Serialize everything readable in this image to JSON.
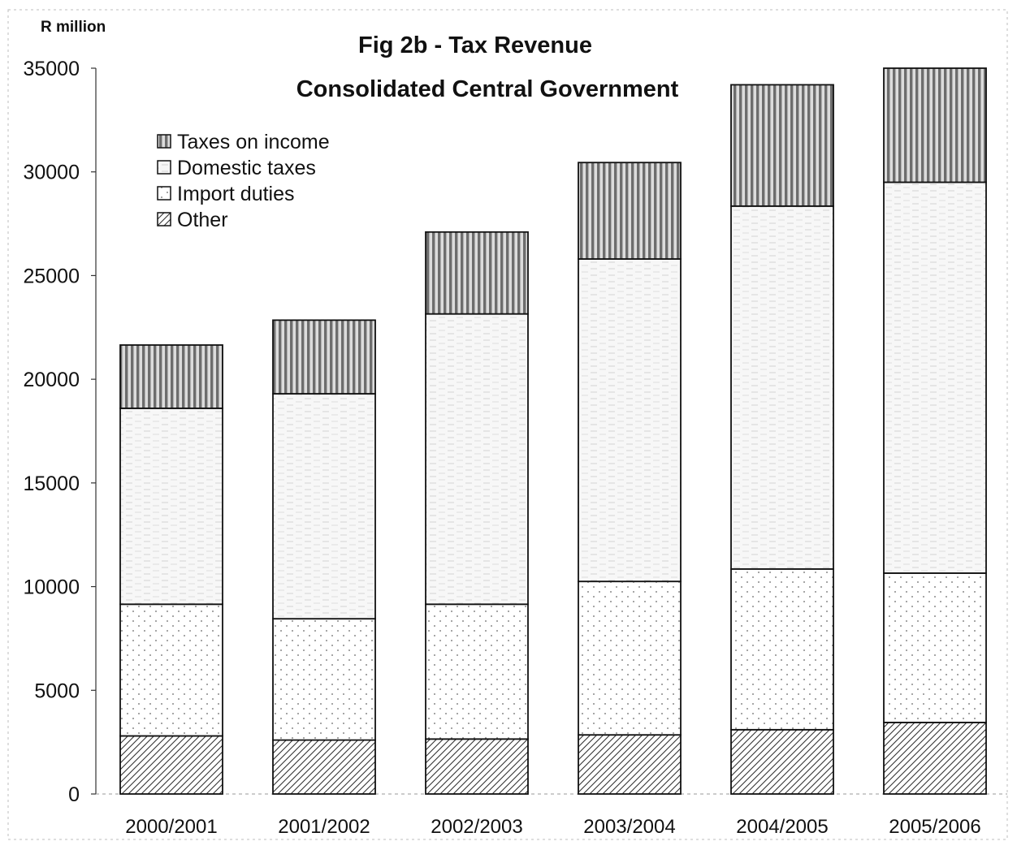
{
  "chart_data": {
    "type": "bar",
    "stacked": true,
    "title": "Fig 2b - Tax Revenue",
    "subtitle": "Consolidated Central Government",
    "ylabel": "R million",
    "xlabel": "",
    "categories": [
      "2000/2001",
      "2001/2002",
      "2002/2003",
      "2003/2004",
      "2004/2005",
      "2005/2006"
    ],
    "ylim": [
      0,
      35000
    ],
    "yticks": [
      0,
      5000,
      10000,
      15000,
      20000,
      25000,
      30000,
      35000
    ],
    "grid": false,
    "legend_position": "top-left",
    "series": [
      {
        "name": "Other",
        "pattern": "diagonal-hatch",
        "values": [
          2800,
          2600,
          2650,
          2850,
          3100,
          3450
        ]
      },
      {
        "name": "Import duties",
        "pattern": "dots",
        "values": [
          6350,
          5850,
          6500,
          7400,
          7750,
          7200
        ]
      },
      {
        "name": "Domestic taxes",
        "pattern": "light-stipple",
        "values": [
          9450,
          10850,
          14000,
          15550,
          17500,
          18850
        ]
      },
      {
        "name": "Taxes on income",
        "pattern": "vertical-stripes",
        "values": [
          3050,
          3550,
          3950,
          4650,
          5850,
          5500
        ]
      }
    ],
    "legend_order": [
      "Taxes on income",
      "Domestic taxes",
      "Import duties",
      "Other"
    ]
  }
}
